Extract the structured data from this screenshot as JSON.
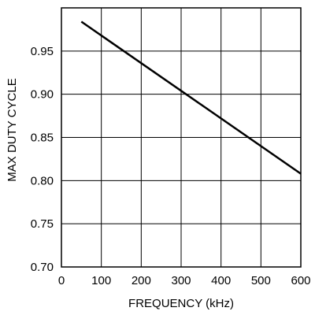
{
  "chart_data": {
    "type": "line",
    "title": "",
    "xlabel": "FREQUENCY (kHz)",
    "ylabel": "MAX DUTY CYCLE",
    "xlim": [
      0,
      600
    ],
    "ylim": [
      0.7,
      1.0
    ],
    "x_ticks": [
      "0",
      "100",
      "200",
      "300",
      "400",
      "500",
      "600"
    ],
    "x_tick_values": [
      0,
      100,
      200,
      300,
      400,
      500,
      600
    ],
    "y_ticks": [
      "0.70",
      "0.75",
      "0.80",
      "0.85",
      "0.90",
      "0.95"
    ],
    "y_tick_values": [
      0.7,
      0.75,
      0.8,
      0.85,
      0.9,
      0.95
    ],
    "grid": true,
    "series": [
      {
        "values": [
          {
            "x": 50,
            "y": 0.984
          },
          {
            "x": 600,
            "y": 0.808
          }
        ]
      }
    ],
    "colors": {
      "line": "#000000",
      "grid": "#000000"
    }
  }
}
